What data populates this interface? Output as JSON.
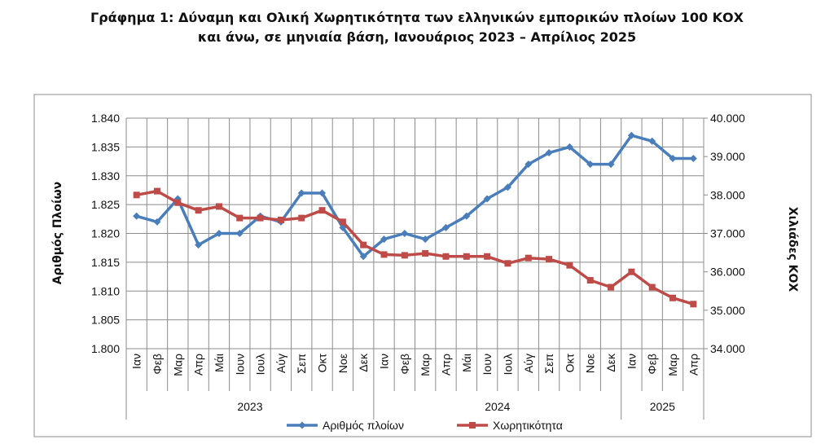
{
  "chart_data": {
    "type": "line",
    "title_lines": [
      "Γράφημα 1: Δύναμη και Ολική Χωρητικότητα των ελληνικών εμπορικών πλοίων 100 ΚΟΧ",
      "και άνω, σε μηνιαία βάση, Ιανουάριος 2023 – Απρίλιος 2025"
    ],
    "ylabel_left": "Αριθμός Πλοίων",
    "ylabel_right": "Χιλιάδες ΚΟΧ",
    "ylim_left": [
      1800,
      1840
    ],
    "ylim_right": [
      34000,
      40000
    ],
    "y_ticks_left": [
      "1.840",
      "1.835",
      "1.830",
      "1.825",
      "1.820",
      "1.815",
      "1.810",
      "1.805",
      "1.800"
    ],
    "y_ticks_right": [
      "40.000",
      "39.000",
      "38.000",
      "37.000",
      "36.000",
      "35.000",
      "34.000"
    ],
    "categories": [
      "Ιαν",
      "Φεβ",
      "Μαρ",
      "Απρ",
      "Μάι",
      "Ιουν",
      "Ιουλ",
      "Αύγ",
      "Σεπ",
      "Οκτ",
      "Νοε",
      "Δεκ",
      "Ιαν",
      "Φεβ",
      "Μαρ",
      "Απρ",
      "Μάι",
      "Ιουν",
      "Ιουλ",
      "Αύγ",
      "Σεπ",
      "Οκτ",
      "Νοε",
      "Δεκ",
      "Ιαν",
      "Φεβ",
      "Μαρ",
      "Απρ"
    ],
    "year_groups": [
      {
        "label": "2023",
        "count": 12
      },
      {
        "label": "2024",
        "count": 12
      },
      {
        "label": "2025",
        "count": 4
      }
    ],
    "legend_position": "bottom",
    "grid": true,
    "series": [
      {
        "name": "Αριθμός πλοίων",
        "axis": "left",
        "color": "#4a7ebb",
        "marker": "diamond",
        "values": [
          1823,
          1822,
          1826,
          1818,
          1820,
          1820,
          1823,
          1822,
          1827,
          1827,
          1821,
          1816,
          1819,
          1820,
          1819,
          1821,
          1823,
          1826,
          1828,
          1832,
          1834,
          1835,
          1832,
          1832,
          1837,
          1836,
          1833,
          1833
        ]
      },
      {
        "name": "Χωρητικότητα",
        "axis": "right",
        "color": "#be4b48",
        "marker": "square",
        "values": [
          38000,
          38100,
          37800,
          37600,
          37700,
          37400,
          37400,
          37350,
          37400,
          37600,
          37300,
          36700,
          36450,
          36430,
          36480,
          36400,
          36400,
          36400,
          36220,
          36360,
          36330,
          36170,
          35780,
          35600,
          36000,
          35600,
          35320,
          35160
        ]
      }
    ]
  }
}
